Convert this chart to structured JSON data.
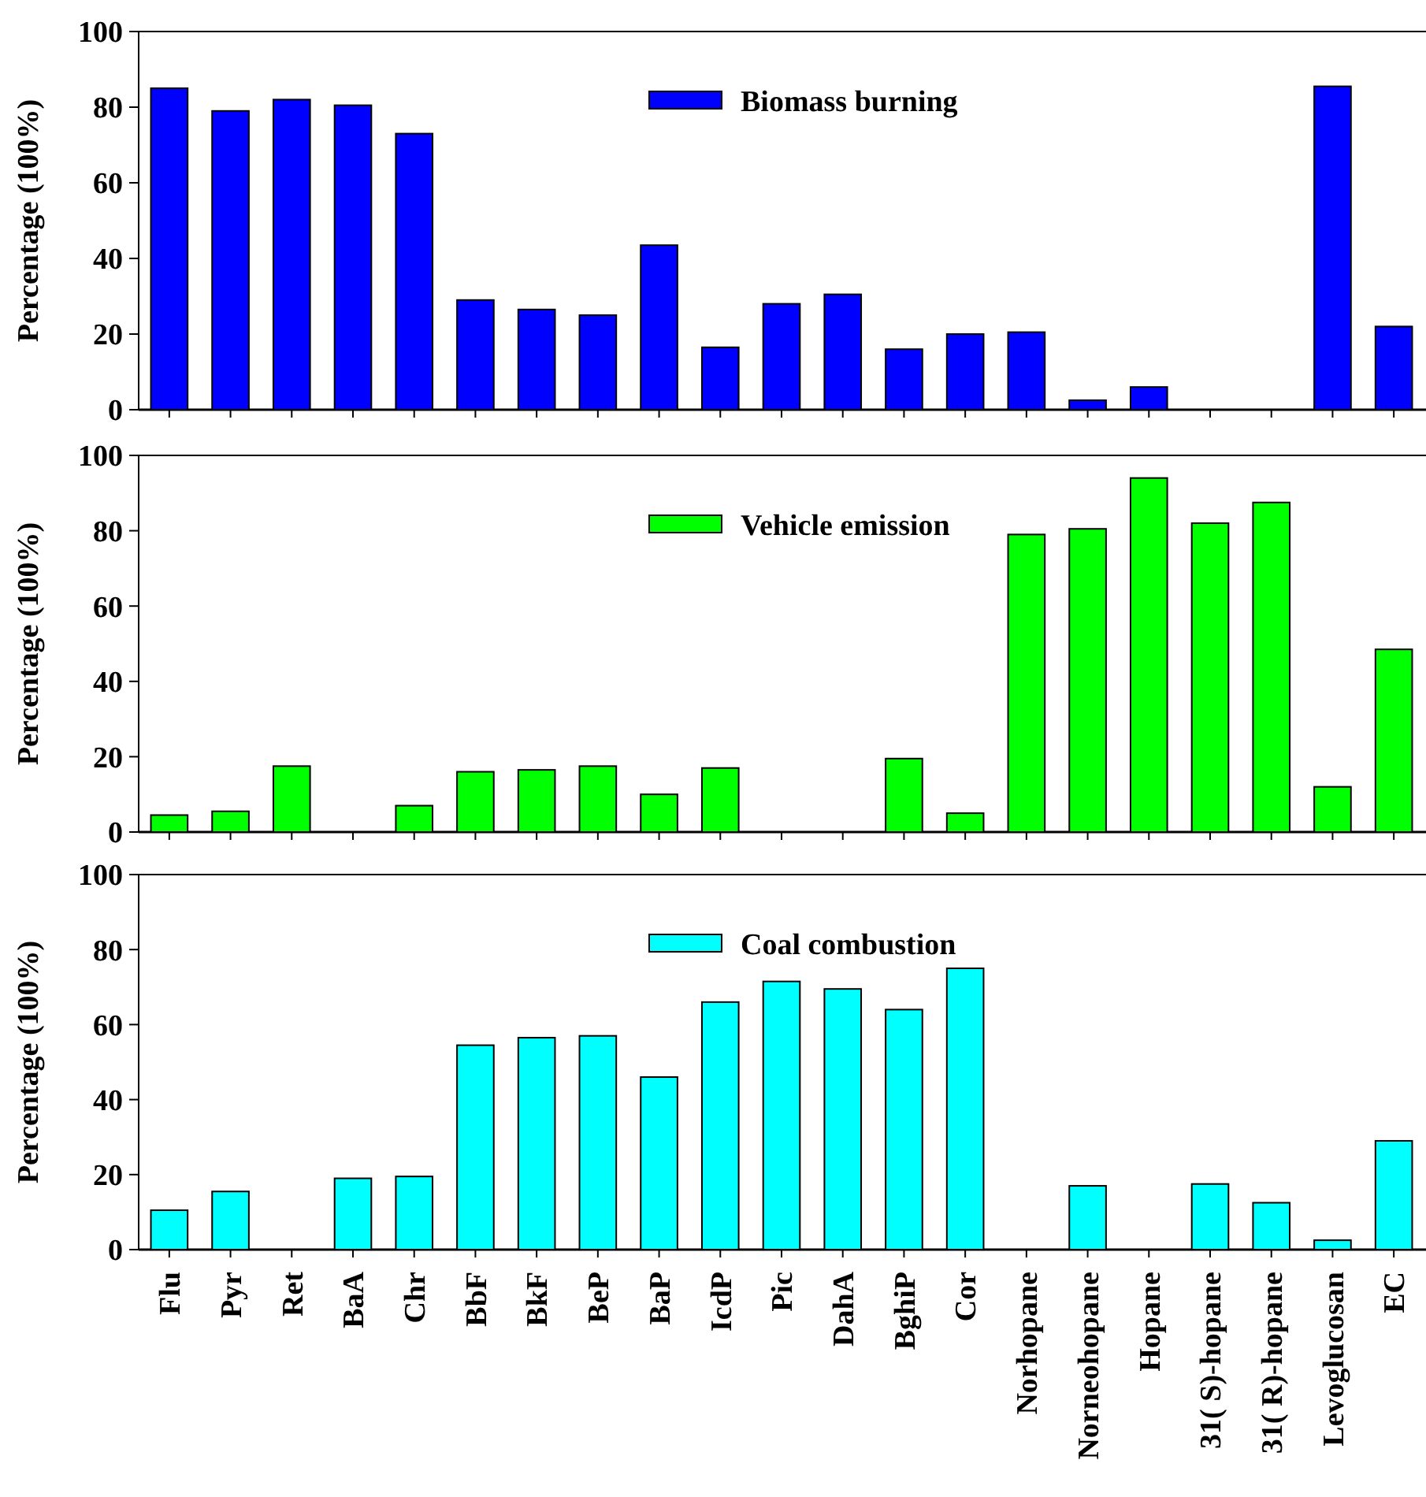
{
  "chart_data": [
    {
      "type": "bar",
      "ylabel": "Percentage (100%)",
      "categories": [
        null,
        null,
        null,
        null,
        null,
        null,
        null,
        null,
        null,
        null,
        null,
        null,
        null,
        null,
        null,
        null,
        null,
        null,
        null,
        null,
        null
      ],
      "series": [
        {
          "name": "Biomass burning",
          "color": "#0000ff",
          "values": [
            85,
            79,
            82,
            80.5,
            73,
            29,
            26.5,
            25,
            43.5,
            16.5,
            28,
            30.5,
            16,
            20,
            20.5,
            2.5,
            6,
            0,
            0,
            85.5,
            22
          ]
        }
      ],
      "ylim": [
        0,
        100
      ],
      "yticks": [
        0,
        20,
        40,
        60,
        80,
        100
      ],
      "legend": "top",
      "tick_labels": "y"
    },
    {
      "type": "bar",
      "ylabel": "Percentage (100%)",
      "categories": [
        null,
        null,
        null,
        null,
        null,
        null,
        null,
        null,
        null,
        null,
        null,
        null,
        null,
        null,
        null,
        null,
        null,
        null,
        null,
        null,
        null
      ],
      "series": [
        {
          "name": "Vehicle emission",
          "color": "#00ff00",
          "values": [
            4.5,
            5.5,
            17.5,
            0,
            7,
            16,
            16.5,
            17.5,
            10,
            17,
            0,
            0,
            19.5,
            5,
            79,
            80.5,
            94,
            82,
            87.5,
            12,
            48.5
          ]
        }
      ],
      "ylim": [
        0,
        100
      ],
      "yticks": [
        0,
        20,
        40,
        60,
        80,
        100
      ],
      "legend": "top",
      "tick_labels": "y"
    },
    {
      "type": "bar",
      "ylabel": "Percentage (100%)",
      "categories": [
        "Flu",
        "Pyr",
        "Ret",
        "BaA",
        "Chr",
        "BbF",
        "BkF",
        "BeP",
        "BaP",
        "IcdP",
        "Pic",
        "DahA",
        "BghiP",
        "Cor",
        "Norhopane",
        "Norneohopane",
        "Hopane",
        "31( S)-hopane",
        "31( R)-hopane",
        "Levoglucosan",
        "EC"
      ],
      "series": [
        {
          "name": "Coal combustion",
          "color": "#00ffff",
          "values": [
            10.5,
            15.5,
            0,
            19,
            19.5,
            54.5,
            56.5,
            57,
            46,
            66,
            71.5,
            69.5,
            64,
            75,
            0,
            17,
            0,
            17.5,
            12.5,
            2.5,
            29
          ]
        }
      ],
      "ylim": [
        0,
        100
      ],
      "yticks": [
        0,
        20,
        40,
        60,
        80,
        100
      ],
      "legend": "top"
    }
  ]
}
